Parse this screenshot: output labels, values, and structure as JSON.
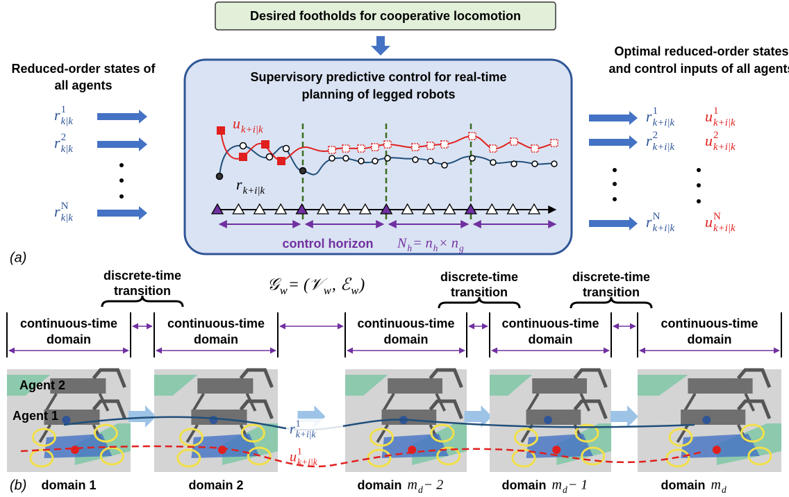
{
  "header": {
    "title": "Desired footholds for cooperative locomotion"
  },
  "left": {
    "title": [
      "Reduced-order states of",
      "all agents"
    ],
    "inputs": [
      [
        {
          "base": "r",
          "sup": "1",
          "sub": "k|k"
        }
      ],
      [
        {
          "base": "r",
          "sup": "2",
          "sub": "k|k"
        }
      ],
      [
        {
          "base": "r",
          "sup": "N",
          "sub": "k|k"
        }
      ]
    ]
  },
  "center": {
    "title": [
      "Supervisory predictive control for real-time",
      "planning of legged robots"
    ],
    "u_label": [
      {
        "base": "u",
        "sub": "k+i|k"
      }
    ],
    "r_label": [
      {
        "base": "r",
        "sub": "k+i|k"
      }
    ],
    "horizon_label": "control horizon",
    "horizon_math": [
      {
        "base": "N",
        "sub": "h"
      },
      {
        "base": " = n",
        "sub": "h"
      },
      {
        "base": " × n",
        "sub": "g"
      }
    ]
  },
  "right": {
    "title": [
      "Optimal reduced-order states",
      "and control inputs of all agents"
    ],
    "outputs": [
      {
        "r": [
          {
            "base": "r",
            "sup": "1",
            "sub": "k+i|k"
          }
        ],
        "u": [
          {
            "base": "u",
            "sup": "1",
            "sub": "k+i|k"
          }
        ]
      },
      {
        "r": [
          {
            "base": "r",
            "sup": "2",
            "sub": "k+i|k"
          }
        ],
        "u": [
          {
            "base": "u",
            "sup": "2",
            "sub": "k+i|k"
          }
        ]
      },
      {
        "r": [
          {
            "base": "r",
            "sup": "N",
            "sub": "k+i|k"
          }
        ],
        "u": [
          {
            "base": "u",
            "sup": "N",
            "sub": "k+i|k"
          }
        ]
      }
    ]
  },
  "panel_labels": [
    "(a)",
    "(b)"
  ],
  "graph": [
    {
      "base": "𝒢",
      "sub": "w"
    },
    {
      "base": " = (𝒱",
      "sub": "w"
    },
    {
      "base": ", ℰ",
      "sub": "w"
    },
    {
      "base": ")"
    }
  ],
  "transitions": [
    [
      "discrete-time",
      "transition"
    ],
    [
      "discrete-time",
      "transition"
    ],
    [
      "discrete-time",
      "transition"
    ]
  ],
  "domains": [
    [
      "continuous-time",
      "domain"
    ],
    [
      "continuous-time",
      "domain"
    ],
    [
      "continuous-time",
      "domain"
    ],
    [
      "continuous-time",
      "domain"
    ],
    [
      "continuous-time",
      "domain"
    ]
  ],
  "agents": [
    "Agent 2",
    "Agent 1"
  ],
  "traj_labels": {
    "r": [
      {
        "base": "r",
        "sup": "1",
        "sub": "k+i|k"
      }
    ],
    "u": [
      {
        "base": "u",
        "sup": "1",
        "sub": "k+i|k"
      }
    ]
  },
  "domain_names": [
    {
      "label": "domain 1"
    },
    {
      "label": "domain 2"
    },
    {
      "label": "domain",
      "math": [
        {
          "base": "m",
          "sub": "d"
        },
        {
          "base": " − 2"
        }
      ]
    },
    {
      "label": "domain",
      "math": [
        {
          "base": "m",
          "sub": "d"
        },
        {
          "base": " − 1"
        }
      ]
    },
    {
      "label": "domain",
      "math": [
        {
          "base": "m",
          "sub": "d"
        }
      ]
    }
  ]
}
